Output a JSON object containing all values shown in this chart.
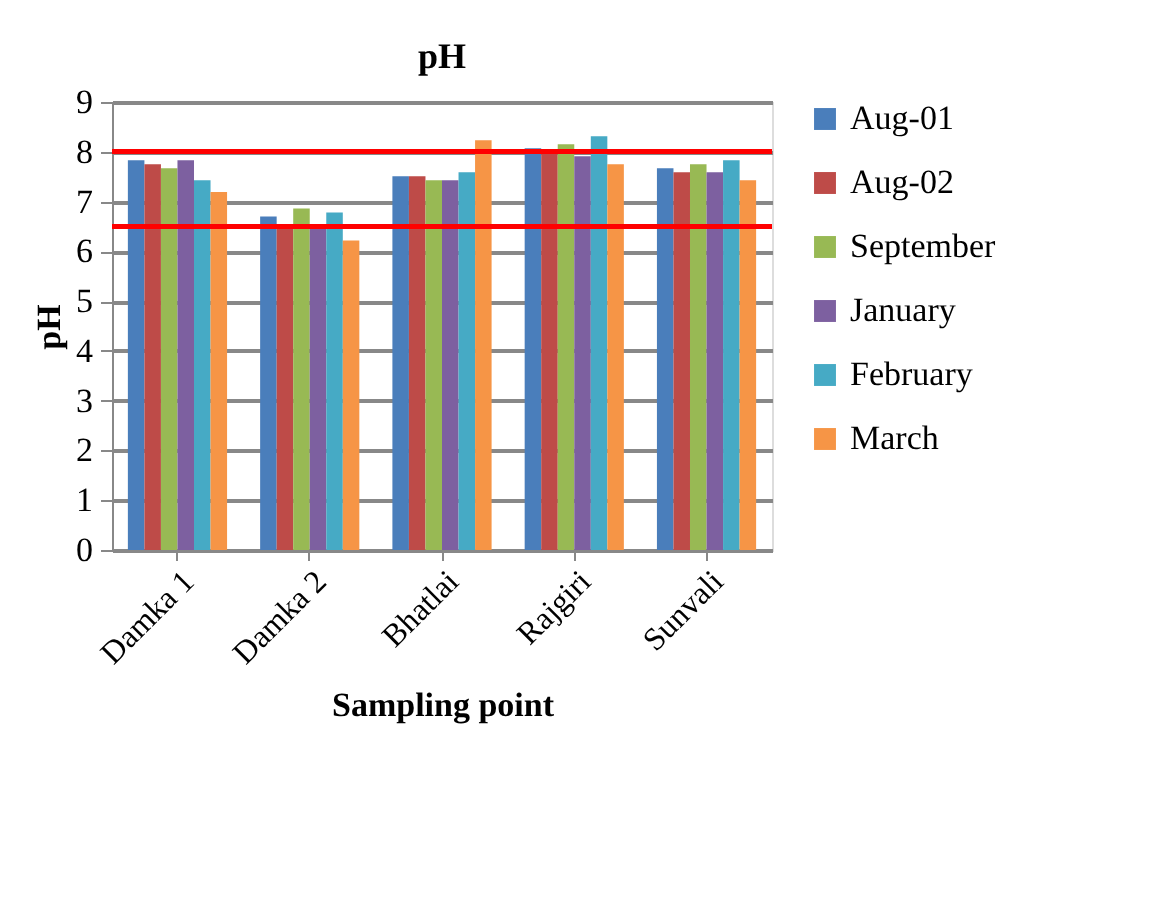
{
  "chart_data": {
    "type": "bar",
    "title": "pH",
    "xlabel": "Sampling point",
    "ylabel": "pH",
    "categories": [
      "Damka 1",
      "Damka 2",
      "Bhatlai",
      "Rajgiri",
      "Sunvali"
    ],
    "series": [
      {
        "name": "Aug-01",
        "color": "#4a7ebb",
        "values": [
          7.83,
          6.7,
          7.51,
          8.07,
          7.67
        ]
      },
      {
        "name": "Aug-02",
        "color": "#be4b48",
        "values": [
          7.75,
          6.5,
          7.51,
          8.0,
          7.59
        ]
      },
      {
        "name": "September",
        "color": "#98b954",
        "values": [
          7.67,
          6.86,
          7.43,
          8.15,
          7.75
        ]
      },
      {
        "name": "January",
        "color": "#7d60a0",
        "values": [
          7.83,
          6.5,
          7.43,
          7.91,
          7.59
        ]
      },
      {
        "name": "February",
        "color": "#46aac5",
        "values": [
          7.43,
          6.78,
          7.59,
          8.31,
          7.83
        ]
      },
      {
        "name": "March",
        "color": "#f69546",
        "values": [
          7.19,
          6.22,
          8.23,
          7.75,
          7.43
        ]
      }
    ],
    "ylim": [
      0,
      9
    ],
    "yticks": [
      0,
      1,
      2,
      3,
      4,
      5,
      6,
      7,
      8,
      9
    ],
    "grid": "y",
    "legend": "right",
    "ref_lines": [
      {
        "axis": "y",
        "value": 8.0,
        "color": "#ff0000"
      },
      {
        "axis": "y",
        "value": 6.5,
        "color": "#ff0000"
      }
    ]
  }
}
